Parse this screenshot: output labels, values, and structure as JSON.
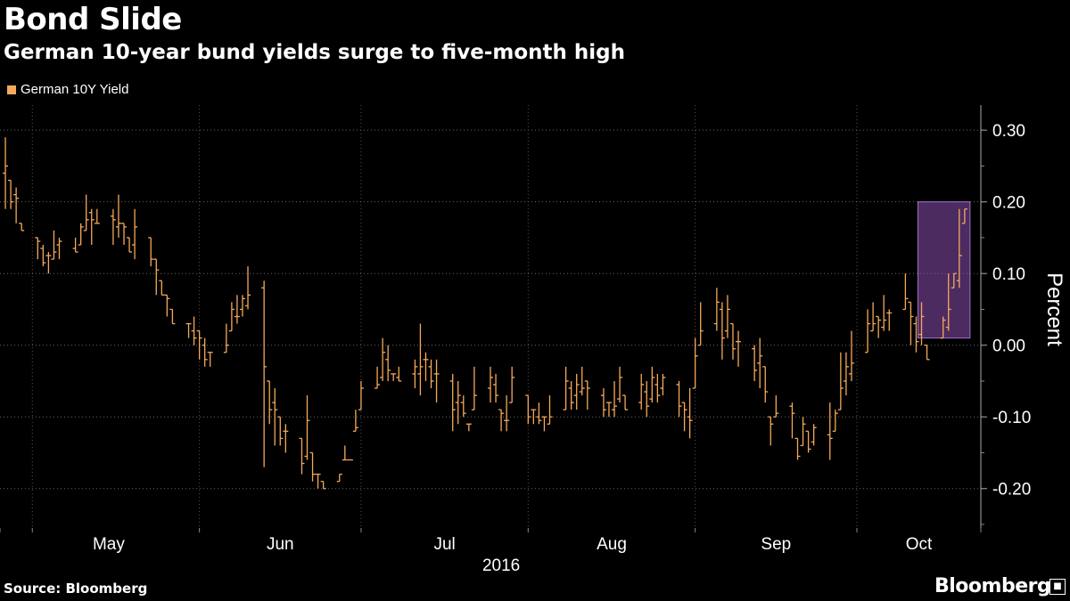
{
  "title": "Bond Slide",
  "subtitle": "German 10-year bund yields surge to five-month high",
  "source": "Source: Bloomberg",
  "brand": "Bloomberg",
  "colors": {
    "series": "#f5a95b",
    "highlight": "#8a4fb0",
    "background": "#000000"
  },
  "chart_data": {
    "type": "bar",
    "chart_style": "OHLC range bars, daily",
    "legend": [
      "German 10Y Yield"
    ],
    "legend_position": "top-left",
    "ylabel": "Percent",
    "xlabel_year": "2016",
    "y_ticks": [
      0.3,
      0.2,
      0.1,
      0.0,
      -0.1,
      -0.2
    ],
    "y_tick_labels": [
      "0.30",
      "0.20",
      "0.10",
      "0.00",
      "-0.10",
      "-0.20"
    ],
    "ylim": [
      -0.255,
      0.335
    ],
    "y_axis_side": "right",
    "grid": true,
    "x_month_labels": [
      "May",
      "Jun",
      "Jul",
      "Aug",
      "Sep",
      "Oct"
    ],
    "highlight_box": {
      "x_range": [
        "2016-10-13",
        "2016-10-21"
      ],
      "y_range": [
        0.01,
        0.2
      ]
    },
    "series": [
      {
        "name": "German 10Y Yield",
        "dates": [
          "2016-04-26",
          "2016-04-27",
          "2016-04-28",
          "2016-04-29",
          "2016-05-02",
          "2016-05-03",
          "2016-05-04",
          "2016-05-05",
          "2016-05-06",
          "2016-05-09",
          "2016-05-10",
          "2016-05-11",
          "2016-05-12",
          "2016-05-13",
          "2016-05-16",
          "2016-05-17",
          "2016-05-18",
          "2016-05-19",
          "2016-05-20",
          "2016-05-23",
          "2016-05-24",
          "2016-05-25",
          "2016-05-26",
          "2016-05-27",
          "2016-05-30",
          "2016-05-31",
          "2016-06-01",
          "2016-06-02",
          "2016-06-03",
          "2016-06-06",
          "2016-06-07",
          "2016-06-08",
          "2016-06-09",
          "2016-06-10",
          "2016-06-13",
          "2016-06-14",
          "2016-06-15",
          "2016-06-16",
          "2016-06-17",
          "2016-06-20",
          "2016-06-21",
          "2016-06-22",
          "2016-06-23",
          "2016-06-24",
          "2016-06-27",
          "2016-06-28",
          "2016-06-29",
          "2016-06-30",
          "2016-07-01",
          "2016-07-04",
          "2016-07-05",
          "2016-07-06",
          "2016-07-07",
          "2016-07-08",
          "2016-07-11",
          "2016-07-12",
          "2016-07-13",
          "2016-07-14",
          "2016-07-15",
          "2016-07-18",
          "2016-07-19",
          "2016-07-20",
          "2016-07-21",
          "2016-07-22",
          "2016-07-25",
          "2016-07-26",
          "2016-07-27",
          "2016-07-28",
          "2016-07-29",
          "2016-08-01",
          "2016-08-02",
          "2016-08-03",
          "2016-08-04",
          "2016-08-05",
          "2016-08-08",
          "2016-08-09",
          "2016-08-10",
          "2016-08-11",
          "2016-08-12",
          "2016-08-15",
          "2016-08-16",
          "2016-08-17",
          "2016-08-18",
          "2016-08-19",
          "2016-08-22",
          "2016-08-23",
          "2016-08-24",
          "2016-08-25",
          "2016-08-26",
          "2016-08-29",
          "2016-08-30",
          "2016-08-31",
          "2016-09-01",
          "2016-09-02",
          "2016-09-05",
          "2016-09-06",
          "2016-09-07",
          "2016-09-08",
          "2016-09-09",
          "2016-09-12",
          "2016-09-13",
          "2016-09-14",
          "2016-09-15",
          "2016-09-16",
          "2016-09-19",
          "2016-09-20",
          "2016-09-21",
          "2016-09-22",
          "2016-09-23",
          "2016-09-26",
          "2016-09-27",
          "2016-09-28",
          "2016-09-29",
          "2016-09-30",
          "2016-10-03",
          "2016-10-04",
          "2016-10-05",
          "2016-10-06",
          "2016-10-07",
          "2016-10-10",
          "2016-10-11",
          "2016-10-12",
          "2016-10-13",
          "2016-10-14",
          "2016-10-17",
          "2016-10-18",
          "2016-10-19",
          "2016-10-20",
          "2016-10-21"
        ],
        "high": [
          0.29,
          0.23,
          0.22,
          0.17,
          0.15,
          0.14,
          0.13,
          0.16,
          0.15,
          0.15,
          0.17,
          0.21,
          0.19,
          0.19,
          0.19,
          0.21,
          0.17,
          0.15,
          0.19,
          0.15,
          0.12,
          0.09,
          0.07,
          0.05,
          0.03,
          0.04,
          0.02,
          0.01,
          -0.01,
          0.03,
          0.06,
          0.07,
          0.07,
          0.11,
          0.09,
          -0.05,
          -0.06,
          -0.1,
          -0.11,
          -0.13,
          -0.07,
          -0.15,
          -0.18,
          -0.19,
          -0.18,
          -0.14,
          -0.16,
          -0.09,
          -0.05,
          -0.03,
          0.01,
          0.0,
          -0.04,
          -0.03,
          -0.02,
          0.03,
          -0.01,
          -0.02,
          -0.02,
          -0.04,
          -0.05,
          -0.07,
          -0.11,
          -0.03,
          -0.03,
          -0.04,
          -0.09,
          -0.07,
          -0.03,
          -0.07,
          -0.09,
          -0.08,
          -0.1,
          -0.07,
          -0.03,
          -0.05,
          -0.04,
          -0.03,
          -0.05,
          -0.06,
          -0.08,
          -0.05,
          -0.03,
          -0.07,
          -0.04,
          -0.05,
          -0.03,
          -0.04,
          -0.04,
          -0.05,
          -0.08,
          -0.06,
          0.01,
          0.06,
          0.08,
          0.06,
          0.07,
          0.03,
          0.02,
          0.0,
          0.01,
          -0.03,
          -0.1,
          -0.07,
          -0.08,
          -0.13,
          -0.1,
          -0.12,
          -0.11,
          -0.08,
          -0.09,
          -0.01,
          -0.01,
          0.02,
          0.05,
          0.06,
          0.04,
          0.07,
          0.05,
          0.1,
          0.06,
          0.04,
          0.06,
          0.0,
          0.04,
          0.1,
          0.1,
          0.19,
          0.19
        ],
        "low": [
          0.19,
          0.19,
          0.17,
          0.16,
          0.12,
          0.11,
          0.1,
          0.12,
          0.12,
          0.13,
          0.14,
          0.16,
          0.14,
          0.17,
          0.14,
          0.15,
          0.14,
          0.13,
          0.12,
          0.11,
          0.07,
          0.07,
          0.04,
          0.03,
          0.01,
          0.0,
          -0.02,
          -0.03,
          -0.03,
          -0.01,
          0.02,
          0.03,
          0.04,
          0.05,
          -0.17,
          -0.11,
          -0.14,
          -0.14,
          -0.15,
          -0.18,
          -0.16,
          -0.19,
          -0.2,
          -0.2,
          -0.19,
          -0.16,
          -0.16,
          -0.12,
          -0.09,
          -0.06,
          -0.05,
          -0.05,
          -0.05,
          -0.05,
          -0.06,
          -0.07,
          -0.05,
          -0.06,
          -0.08,
          -0.12,
          -0.11,
          -0.1,
          -0.12,
          -0.09,
          -0.08,
          -0.08,
          -0.12,
          -0.12,
          -0.08,
          -0.11,
          -0.11,
          -0.11,
          -0.12,
          -0.11,
          -0.09,
          -0.09,
          -0.09,
          -0.07,
          -0.09,
          -0.1,
          -0.1,
          -0.1,
          -0.08,
          -0.09,
          -0.09,
          -0.1,
          -0.08,
          -0.08,
          -0.07,
          -0.1,
          -0.12,
          -0.13,
          -0.06,
          0.0,
          0.02,
          -0.02,
          0.01,
          -0.02,
          -0.03,
          -0.05,
          -0.06,
          -0.08,
          -0.14,
          -0.1,
          -0.13,
          -0.16,
          -0.14,
          -0.15,
          -0.14,
          -0.16,
          -0.12,
          -0.09,
          -0.07,
          -0.05,
          -0.01,
          0.02,
          0.01,
          0.02,
          0.02,
          0.05,
          0.0,
          -0.01,
          0.0,
          -0.02,
          0.01,
          0.02,
          0.08,
          0.08,
          0.17
        ]
      }
    ]
  }
}
